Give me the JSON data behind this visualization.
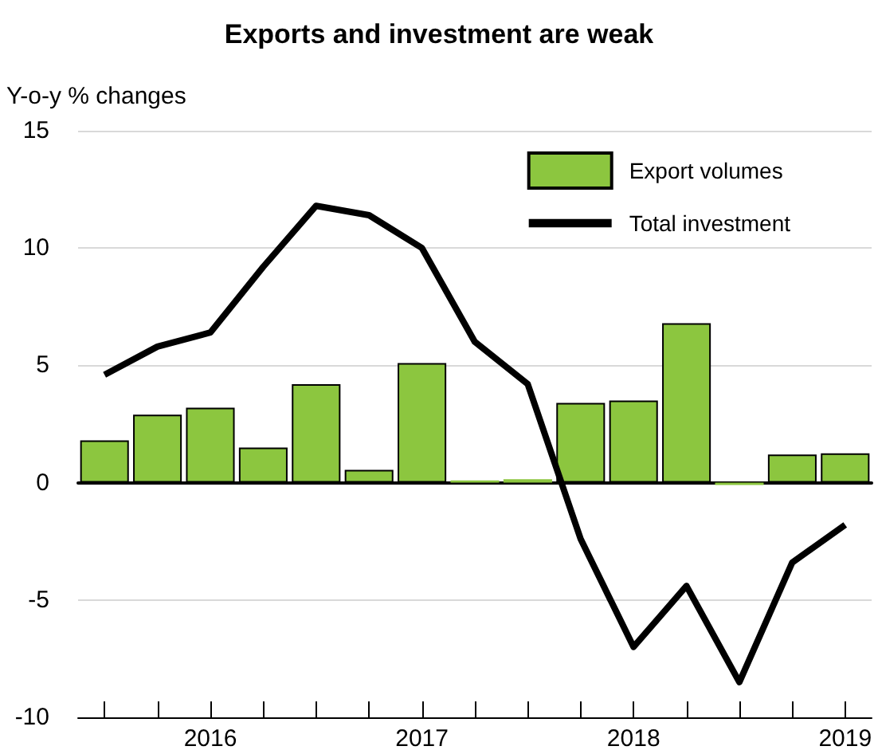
{
  "chart_data": {
    "type": "bar",
    "title": "Exports and investment are weak",
    "ylabel": "Y-o-y % changes",
    "categories": [
      null,
      null,
      "2016",
      null,
      null,
      null,
      "2017",
      null,
      null,
      null,
      "2018",
      null,
      null,
      null,
      "2019"
    ],
    "series": [
      {
        "name": "Export volumes",
        "color": "#8cc63f",
        "values": [
          1.8,
          2.9,
          3.2,
          1.5,
          4.2,
          0.55,
          5.1,
          0.1,
          0.15,
          3.4,
          3.5,
          6.8,
          -0.1,
          1.2,
          1.25
        ]
      },
      {
        "name": "Total investment",
        "type": "line",
        "color": "#000000",
        "values": [
          4.6,
          5.8,
          6.4,
          9.2,
          11.8,
          11.4,
          10.0,
          6.0,
          4.2,
          -2.4,
          -7.0,
          -4.4,
          -8.5,
          -3.4,
          -1.8
        ]
      }
    ],
    "ylim": [
      -10,
      15
    ],
    "yticks": [
      -10,
      -5,
      0,
      5,
      10,
      15
    ],
    "grid": "y",
    "legend": "top right",
    "marker": "none",
    "line_style": "solid"
  }
}
